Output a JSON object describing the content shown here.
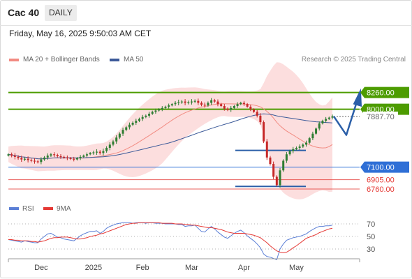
{
  "header": {
    "instrument": "Cac 40",
    "timeframe": "DAILY",
    "datetime": "Friday, May 16, 2025 9:50:03 AM CET"
  },
  "legend": {
    "ma20_label": "MA 20 + Bollinger Bands",
    "ma20_color": "#f28b82",
    "ma50_label": "MA 50",
    "ma50_color": "#3c5a99",
    "rsi_label": "RSI",
    "rsi_color": "#5b7fd6",
    "ma9_label": "9MA",
    "ma9_color": "#e53935"
  },
  "credit": "Research © 2025 Trading Central",
  "colors": {
    "resistance": "#4d9c00",
    "pivot": "#2f6fd6",
    "support": "#e53935",
    "current": "#666666",
    "arrow": "#2b5fa8",
    "bull_candle": "#2e7d32",
    "bear_candle": "#c62828",
    "bollinger_fill": "#fbd3d3"
  },
  "chart_data": [
    {
      "type": "candlestick",
      "x_ticks": [
        "Dec",
        "2025",
        "Feb",
        "Mar",
        "Apr",
        "May"
      ],
      "levels": [
        {
          "label": "8260.00",
          "value": 8260,
          "kind": "resistance"
        },
        {
          "label": "8000.00",
          "value": 8000,
          "kind": "resistance"
        },
        {
          "label": "7887.70",
          "value": 7887.7,
          "kind": "current"
        },
        {
          "label": "7100.00",
          "value": 7100,
          "kind": "pivot"
        },
        {
          "label": "6905.00",
          "value": 6905,
          "kind": "support"
        },
        {
          "label": "6760.00",
          "value": 6760,
          "kind": "support"
        }
      ],
      "close": [
        7300,
        7280,
        7260,
        7240,
        7220,
        7230,
        7210,
        7200,
        7190,
        7180,
        7220,
        7250,
        7280,
        7300,
        7290,
        7270,
        7260,
        7250,
        7240,
        7230,
        7220,
        7240,
        7260,
        7280,
        7300,
        7320,
        7330,
        7340,
        7320,
        7350,
        7400,
        7450,
        7500,
        7560,
        7620,
        7680,
        7720,
        7760,
        7790,
        7820,
        7850,
        7880,
        7900,
        7930,
        7960,
        7980,
        8000,
        8020,
        8040,
        8060,
        8080,
        8100,
        8110,
        8120,
        8100,
        8110,
        8120,
        8130,
        8100,
        8070,
        8060,
        8100,
        8140,
        8120,
        8080,
        8050,
        8010,
        7990,
        8020,
        8050,
        8080,
        8100,
        8080,
        8040,
        8000,
        7960,
        7900,
        7800,
        7500,
        7250,
        7150,
        6950,
        6820,
        7050,
        7200,
        7300,
        7350,
        7380,
        7400,
        7420,
        7450,
        7480,
        7550,
        7620,
        7700,
        7780,
        7820,
        7850,
        7870,
        7890
      ]
    },
    {
      "type": "line",
      "title": "RSI",
      "y_ticks": [
        70,
        50,
        30
      ],
      "ylim": [
        0,
        100
      ],
      "rsi": [
        45,
        44,
        43,
        42,
        41,
        43,
        42,
        41,
        40,
        40,
        46,
        50,
        54,
        55,
        52,
        49,
        48,
        46,
        45,
        44,
        43,
        47,
        51,
        54,
        56,
        58,
        58,
        59,
        55,
        58,
        63,
        66,
        68,
        70,
        71,
        72,
        72,
        72,
        71,
        72,
        72,
        72,
        71,
        72,
        72,
        71,
        71,
        71,
        70,
        70,
        70,
        70,
        69,
        69,
        66,
        67,
        67,
        68,
        63,
        58,
        57,
        62,
        66,
        62,
        57,
        53,
        49,
        47,
        51,
        55,
        58,
        60,
        56,
        51,
        47,
        43,
        38,
        32,
        22,
        18,
        17,
        15,
        13,
        30,
        38,
        44,
        46,
        48,
        49,
        50,
        52,
        54,
        58,
        61,
        64,
        66,
        66,
        67,
        67,
        68
      ],
      "ma9": [
        45,
        45,
        44,
        44,
        43,
        43,
        43,
        42,
        42,
        41,
        42,
        43,
        45,
        47,
        48,
        48,
        49,
        49,
        49,
        48,
        47,
        46,
        46,
        47,
        48,
        50,
        51,
        52,
        54,
        55,
        57,
        59,
        61,
        63,
        65,
        67,
        69,
        70,
        71,
        71,
        72,
        72,
        72,
        72,
        72,
        72,
        72,
        71,
        71,
        71,
        71,
        70,
        70,
        70,
        69,
        69,
        68,
        68,
        67,
        66,
        65,
        64,
        64,
        63,
        62,
        61,
        59,
        57,
        56,
        55,
        55,
        55,
        55,
        54,
        53,
        52,
        50,
        48,
        44,
        40,
        35,
        31,
        27,
        25,
        24,
        25,
        28,
        32,
        35,
        39,
        43,
        47,
        49,
        51,
        53,
        56,
        58,
        60,
        62,
        63
      ]
    }
  ]
}
